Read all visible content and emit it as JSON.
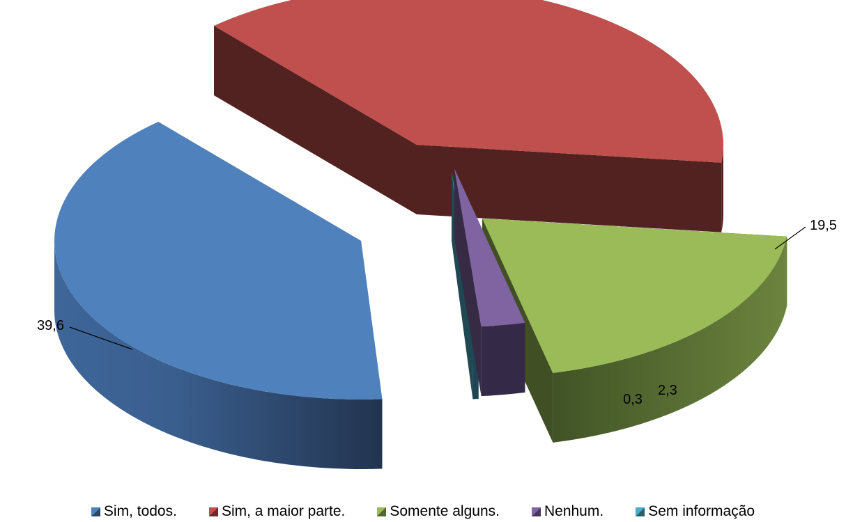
{
  "chart_data": {
    "type": "pie",
    "title": "",
    "series": [
      {
        "name": "Sim, todos.",
        "value": 39.6,
        "label": "39,6",
        "color": "#4F81BD"
      },
      {
        "name": "Sim, a maior parte.",
        "value": 38.3,
        "label": "",
        "color": "#C0504D"
      },
      {
        "name": "Somente alguns.",
        "value": 19.5,
        "label": "19,5",
        "color": "#9BBB59"
      },
      {
        "name": "Nenhum.",
        "value": 2.3,
        "label": "2,3",
        "color": "#8064A2"
      },
      {
        "name": "Sem informação",
        "value": 0.3,
        "label": "0,3",
        "color": "#4BACC6"
      }
    ],
    "legend_position": "bottom",
    "style": "3d-exploded"
  }
}
